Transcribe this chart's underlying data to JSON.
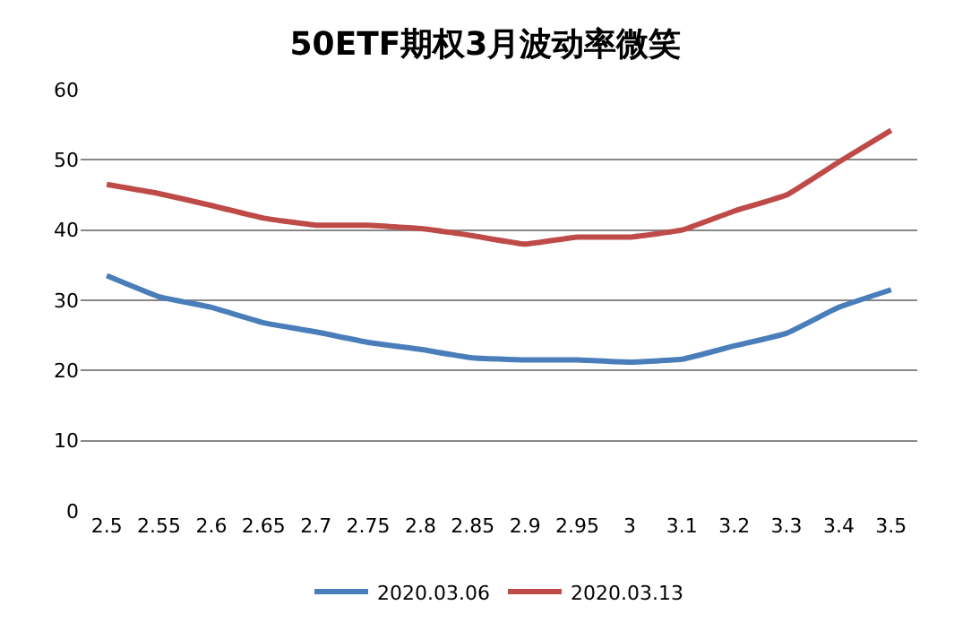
{
  "chart_data": {
    "type": "line",
    "title": "50ETF期权3月波动率微笑",
    "categories": [
      "2.5",
      "2.55",
      "2.6",
      "2.65",
      "2.7",
      "2.75",
      "2.8",
      "2.85",
      "2.9",
      "2.95",
      "3",
      "3.1",
      "3.2",
      "3.3",
      "3.4",
      "3.5"
    ],
    "series": [
      {
        "name": "2020.03.06",
        "color": "#4a7ebb",
        "values": [
          33.5,
          30.5,
          29,
          26.8,
          25.5,
          24,
          23,
          21.8,
          21.5,
          21.5,
          21.2,
          21.6,
          23.5,
          25.3,
          29,
          31.5
        ]
      },
      {
        "name": "2020.03.13",
        "color": "#be4b48",
        "values": [
          46.5,
          45.2,
          43.5,
          41.7,
          40.7,
          40.7,
          40.2,
          39.2,
          38,
          39,
          39,
          40,
          42.7,
          45,
          49.7,
          54.2
        ]
      }
    ],
    "ylim": [
      0,
      60
    ],
    "yticks": [
      0,
      10,
      20,
      30,
      40,
      50,
      60
    ],
    "grid": "y",
    "legend": "bottom",
    "marker": "none",
    "line_style": "solid"
  }
}
